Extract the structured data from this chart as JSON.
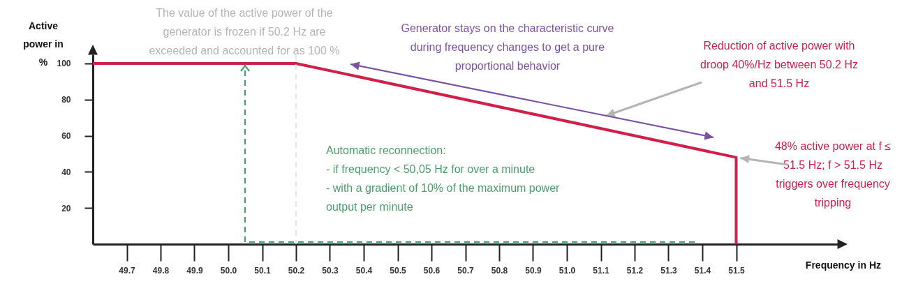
{
  "chart_data": {
    "type": "line",
    "xlabel": "Frequency in Hz",
    "ylabel": "Active power in %",
    "xlim": [
      49.6,
      51.8
    ],
    "ylim": [
      0,
      105
    ],
    "xticks": [
      49.7,
      49.8,
      49.9,
      {
        "value": 50.0,
        "label": "50.0"
      },
      50.1,
      50.2,
      50.3,
      50.4,
      50.5,
      50.6,
      50.7,
      50.8,
      50.9,
      {
        "value": 51.0,
        "label": "51.0"
      },
      51.1,
      51.2,
      51.3,
      51.4,
      51.5
    ],
    "yticks": [
      20,
      40,
      60,
      80,
      100
    ],
    "grid": false,
    "series": [
      {
        "color": "#d0204a",
        "x": [
          49.6,
          50.2,
          51.5,
          51.5
        ],
        "values": [
          100,
          100,
          48,
          0
        ]
      }
    ],
    "ref_lines": [
      {
        "axis": "x",
        "value": 50.2,
        "color": "#d4d4d4",
        "line_style": "dashed",
        "label": "The value of the active power of the generator is frozen if 50.2 Hz are exceeded and accounted for as 100 %"
      }
    ],
    "annotations": [
      "Generator stays on the characteristic curve during frequency changes to get a pure proportional behavior",
      "Reduction of active power with droop 40%/Hz between 50.2 Hz and 51.5 Hz",
      {
        "text": "48% active power at f ≤ 51.5 Hz; f > 51.5 Hz triggers over frequency tripping",
        "x": 51.5,
        "y": 48
      },
      "Automatic reconnection: - if frequency < 50,05 Hz for over a minute - with a gradient of 10% of the maximum power output per minute"
    ]
  }
}
